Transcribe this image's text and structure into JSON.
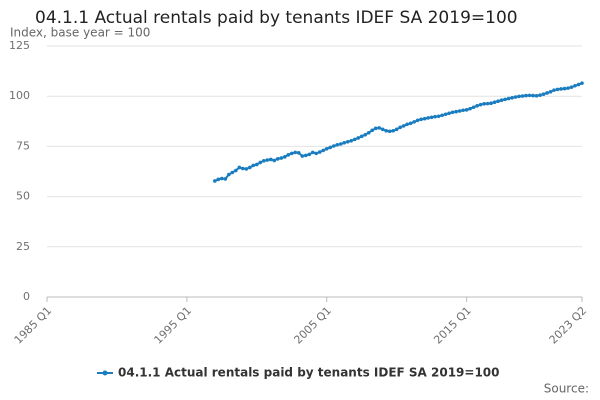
{
  "chart_data": {
    "type": "line",
    "title": "04.1.1 Actual rentals paid by tenants IDEF SA 2019=100",
    "subtitle": "Index, base year = 100",
    "source": "Source:",
    "categories": [
      "1985 Q1",
      null,
      null,
      null,
      null,
      null,
      null,
      null,
      null,
      null,
      null,
      null,
      null,
      null,
      null,
      null,
      null,
      null,
      null,
      null,
      null,
      null,
      null,
      null,
      null,
      null,
      null,
      null,
      null,
      null,
      null,
      null,
      null,
      null,
      null,
      null,
      null,
      null,
      null,
      null,
      "1995 Q1",
      null,
      null,
      null,
      null,
      null,
      null,
      null,
      null,
      null,
      null,
      null,
      null,
      null,
      null,
      null,
      null,
      null,
      null,
      null,
      null,
      null,
      null,
      null,
      null,
      null,
      null,
      null,
      null,
      null,
      null,
      null,
      null,
      null,
      null,
      null,
      null,
      null,
      null,
      null,
      "2005 Q1",
      null,
      null,
      null,
      null,
      null,
      null,
      null,
      null,
      null,
      null,
      null,
      null,
      null,
      null,
      null,
      null,
      null,
      null,
      null,
      null,
      null,
      null,
      null,
      null,
      null,
      null,
      null,
      null,
      null,
      null,
      null,
      null,
      null,
      null,
      null,
      null,
      null,
      null,
      null,
      "2015 Q1",
      null,
      null,
      null,
      null,
      null,
      null,
      null,
      null,
      null,
      null,
      null,
      null,
      null,
      null,
      null,
      null,
      null,
      null,
      null,
      null,
      null,
      null,
      null,
      null,
      null,
      null,
      null,
      null,
      null,
      null,
      null,
      null,
      "2023 Q2"
    ],
    "series": [
      {
        "name": "04.1.1 Actual rentals paid by tenants IDEF SA 2019=100",
        "color": "#1a7dc0",
        "values": [
          null,
          null,
          null,
          null,
          null,
          null,
          null,
          null,
          null,
          null,
          null,
          null,
          null,
          null,
          null,
          null,
          null,
          null,
          null,
          null,
          null,
          null,
          null,
          null,
          null,
          null,
          null,
          null,
          null,
          null,
          null,
          null,
          null,
          null,
          null,
          null,
          null,
          null,
          null,
          null,
          null,
          null,
          null,
          null,
          null,
          null,
          null,
          null,
          57.8,
          58.6,
          59.0,
          58.8,
          61.0,
          62.0,
          63.0,
          64.5,
          64.0,
          63.8,
          64.5,
          65.5,
          66.0,
          67.0,
          67.8,
          68.2,
          68.5,
          68.0,
          68.8,
          69.2,
          69.8,
          70.8,
          71.5,
          72.0,
          71.8,
          70.2,
          70.5,
          71.0,
          72.0,
          71.5,
          72.2,
          73.0,
          73.8,
          74.5,
          75.2,
          75.8,
          76.2,
          76.8,
          77.3,
          77.8,
          78.5,
          79.2,
          80.0,
          80.8,
          81.8,
          83.0,
          84.0,
          84.2,
          83.5,
          82.8,
          82.5,
          82.8,
          83.5,
          84.5,
          85.2,
          86.0,
          86.5,
          87.2,
          88.0,
          88.5,
          88.8,
          89.2,
          89.5,
          89.8,
          90.0,
          90.5,
          91.0,
          91.5,
          92.0,
          92.3,
          92.6,
          93.0,
          93.2,
          93.8,
          94.5,
          95.2,
          95.8,
          96.2,
          96.3,
          96.5,
          97.0,
          97.5,
          98.0,
          98.4,
          98.8,
          99.2,
          99.6,
          99.9,
          100.1,
          100.3,
          100.4,
          100.3,
          100.2,
          100.5,
          101.0,
          101.6,
          102.2,
          103.0,
          103.4,
          103.6,
          103.8,
          104.0,
          104.5,
          105.2,
          105.8,
          106.5
        ]
      }
    ],
    "ylim": [
      0,
      125
    ],
    "yticks": [
      0,
      25,
      50,
      75,
      100,
      125
    ],
    "grid": true,
    "legend": "bottom"
  }
}
